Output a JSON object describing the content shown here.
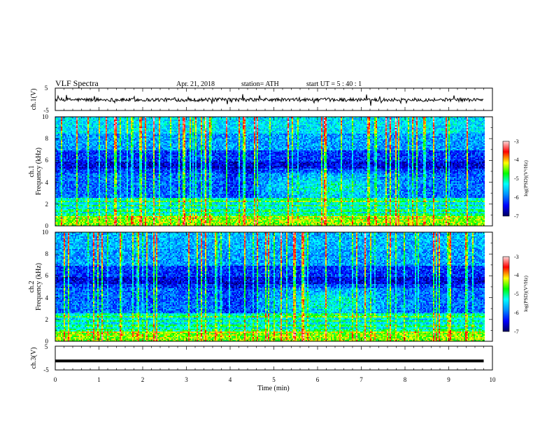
{
  "header": {
    "title": "VLF  Spectra",
    "date": "Apr. 21, 2018",
    "station": "station= ATH",
    "start": "start  UT  =    5  : 40 : 1"
  },
  "chart_data": [
    {
      "type": "line",
      "panel": "ch1-waveform",
      "ylabel": "ch.1(V)",
      "yticks": [
        "5",
        "-5"
      ],
      "ylim": [
        -5,
        5
      ],
      "xlim": [
        0,
        10
      ],
      "baseline": -0.2,
      "xmax_data": 9.8
    },
    {
      "type": "heatmap",
      "panel": "ch1-spectrogram",
      "ylabel": [
        "ch.1",
        "Frequency  (kHz)"
      ],
      "yticks": [
        "0",
        "2",
        "4",
        "6",
        "8",
        "10"
      ],
      "ylim": [
        0,
        10
      ],
      "xlim": [
        0,
        10
      ],
      "xmax_data": 9.8,
      "colorbar": {
        "label": "log(PSD)(V²/Hz)",
        "ticks": [
          "-3",
          "-4",
          "-5",
          "-6",
          "-7"
        ],
        "range": [
          -7,
          -3
        ]
      },
      "colors": [
        "#000060",
        "#0000ff",
        "#0090ff",
        "#00ffff",
        "#00ff00",
        "#ffff00",
        "#ff0000",
        "#ffdada"
      ]
    },
    {
      "type": "heatmap",
      "panel": "ch2-spectrogram",
      "ylabel": [
        "ch.2",
        "Frequency  (kHz)"
      ],
      "yticks": [
        "0",
        "2",
        "4",
        "6",
        "8",
        "10"
      ],
      "ylim": [
        0,
        10
      ],
      "xlim": [
        0,
        10
      ],
      "xmax_data": 9.8,
      "colorbar": {
        "label": "log(PSD)(V²/Hz)",
        "ticks": [
          "-3",
          "-4",
          "-5",
          "-6",
          "-7"
        ],
        "range": [
          -7,
          -3
        ]
      },
      "colors": [
        "#000060",
        "#0000ff",
        "#0090ff",
        "#00ffff",
        "#00ff00",
        "#ffff00",
        "#ff0000",
        "#ffdada"
      ]
    },
    {
      "type": "line",
      "panel": "ch3-waveform",
      "ylabel": "ch.3(V)",
      "yticks": [
        "5",
        "-5"
      ],
      "ylim": [
        -5,
        5
      ],
      "xlim": [
        0,
        10
      ],
      "baseline": -1.2,
      "xmax_data": 9.8,
      "xlabel": "Time  (min)",
      "xticks": [
        "0",
        "1",
        "2",
        "3",
        "4",
        "5",
        "6",
        "7",
        "8",
        "9",
        "10"
      ]
    }
  ]
}
